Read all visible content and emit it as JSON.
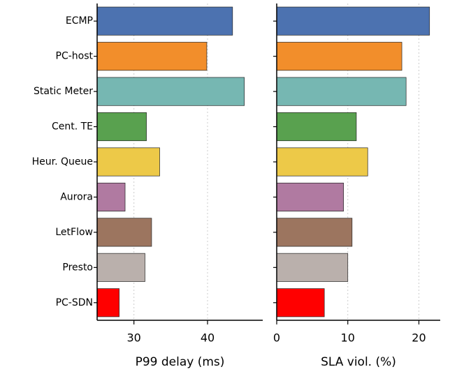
{
  "chart_data": [
    {
      "type": "bar",
      "orientation": "horizontal",
      "xlabel": "P99 delay (ms)",
      "categories": [
        "ECMP",
        "PC-host",
        "Static Meter",
        "Cent. TE",
        "Heur. Queue",
        "Aurora",
        "LetFlow",
        "Presto",
        "PC-SDN"
      ],
      "values": [
        43.4,
        39.9,
        45.0,
        31.7,
        33.5,
        28.8,
        32.4,
        31.5,
        28.0
      ],
      "colors": [
        "#4c72b0",
        "#f28e2b",
        "#76b7b2",
        "#59a14f",
        "#edc948",
        "#b07aa1",
        "#9c755f",
        "#bab0ac",
        "#ff0000"
      ],
      "xlim": [
        25,
        47.5
      ],
      "xticks": [
        30,
        40
      ],
      "grid": true
    },
    {
      "type": "bar",
      "orientation": "horizontal",
      "xlabel": "SLA viol. (%)",
      "values": [
        21.5,
        17.6,
        18.2,
        11.2,
        12.8,
        9.4,
        10.6,
        10.0,
        6.7
      ],
      "colors": [
        "#4c72b0",
        "#f28e2b",
        "#76b7b2",
        "#59a14f",
        "#edc948",
        "#b07aa1",
        "#9c755f",
        "#bab0ac",
        "#ff0000"
      ],
      "xlim": [
        0,
        23
      ],
      "xticks": [
        0,
        10,
        20
      ],
      "grid": true
    }
  ]
}
